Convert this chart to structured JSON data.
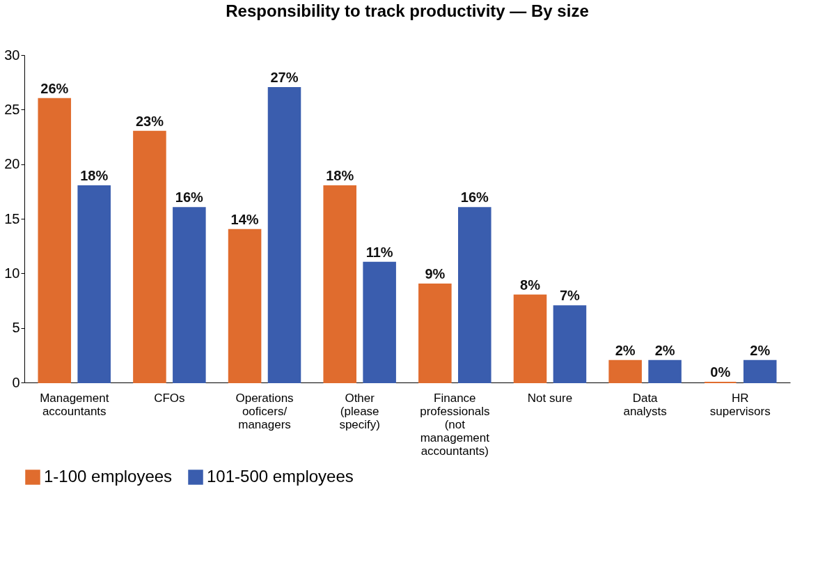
{
  "chart_data": {
    "type": "bar",
    "title": "Responsibility to track productivity — By size",
    "categories": [
      "Management accountants",
      "CFOs",
      "Operations ooficers/ managers",
      "Other (please specify)",
      "Finance professionals (not management accountants)",
      "Not sure",
      "Data analysts",
      "HR supervisors"
    ],
    "series": [
      {
        "name": "1-100 employees",
        "color": "#e06c2e",
        "values": [
          26,
          23,
          14,
          18,
          9,
          8,
          2,
          0
        ],
        "value_labels": [
          "26%",
          "23%",
          "14%",
          "18%",
          "9%",
          "8%",
          "2%",
          "0%"
        ]
      },
      {
        "name": "101-500 employees",
        "color": "#3a5dae",
        "values": [
          18,
          16,
          27,
          11,
          16,
          7,
          2,
          2
        ],
        "value_labels": [
          "18%",
          "16%",
          "27%",
          "11%",
          "16%",
          "7%",
          "2%",
          "2%"
        ]
      }
    ],
    "ylim": [
      0,
      30
    ],
    "yticks": [
      0,
      5,
      10,
      15,
      20,
      25,
      30
    ],
    "grid": false,
    "legend": "bottom"
  }
}
